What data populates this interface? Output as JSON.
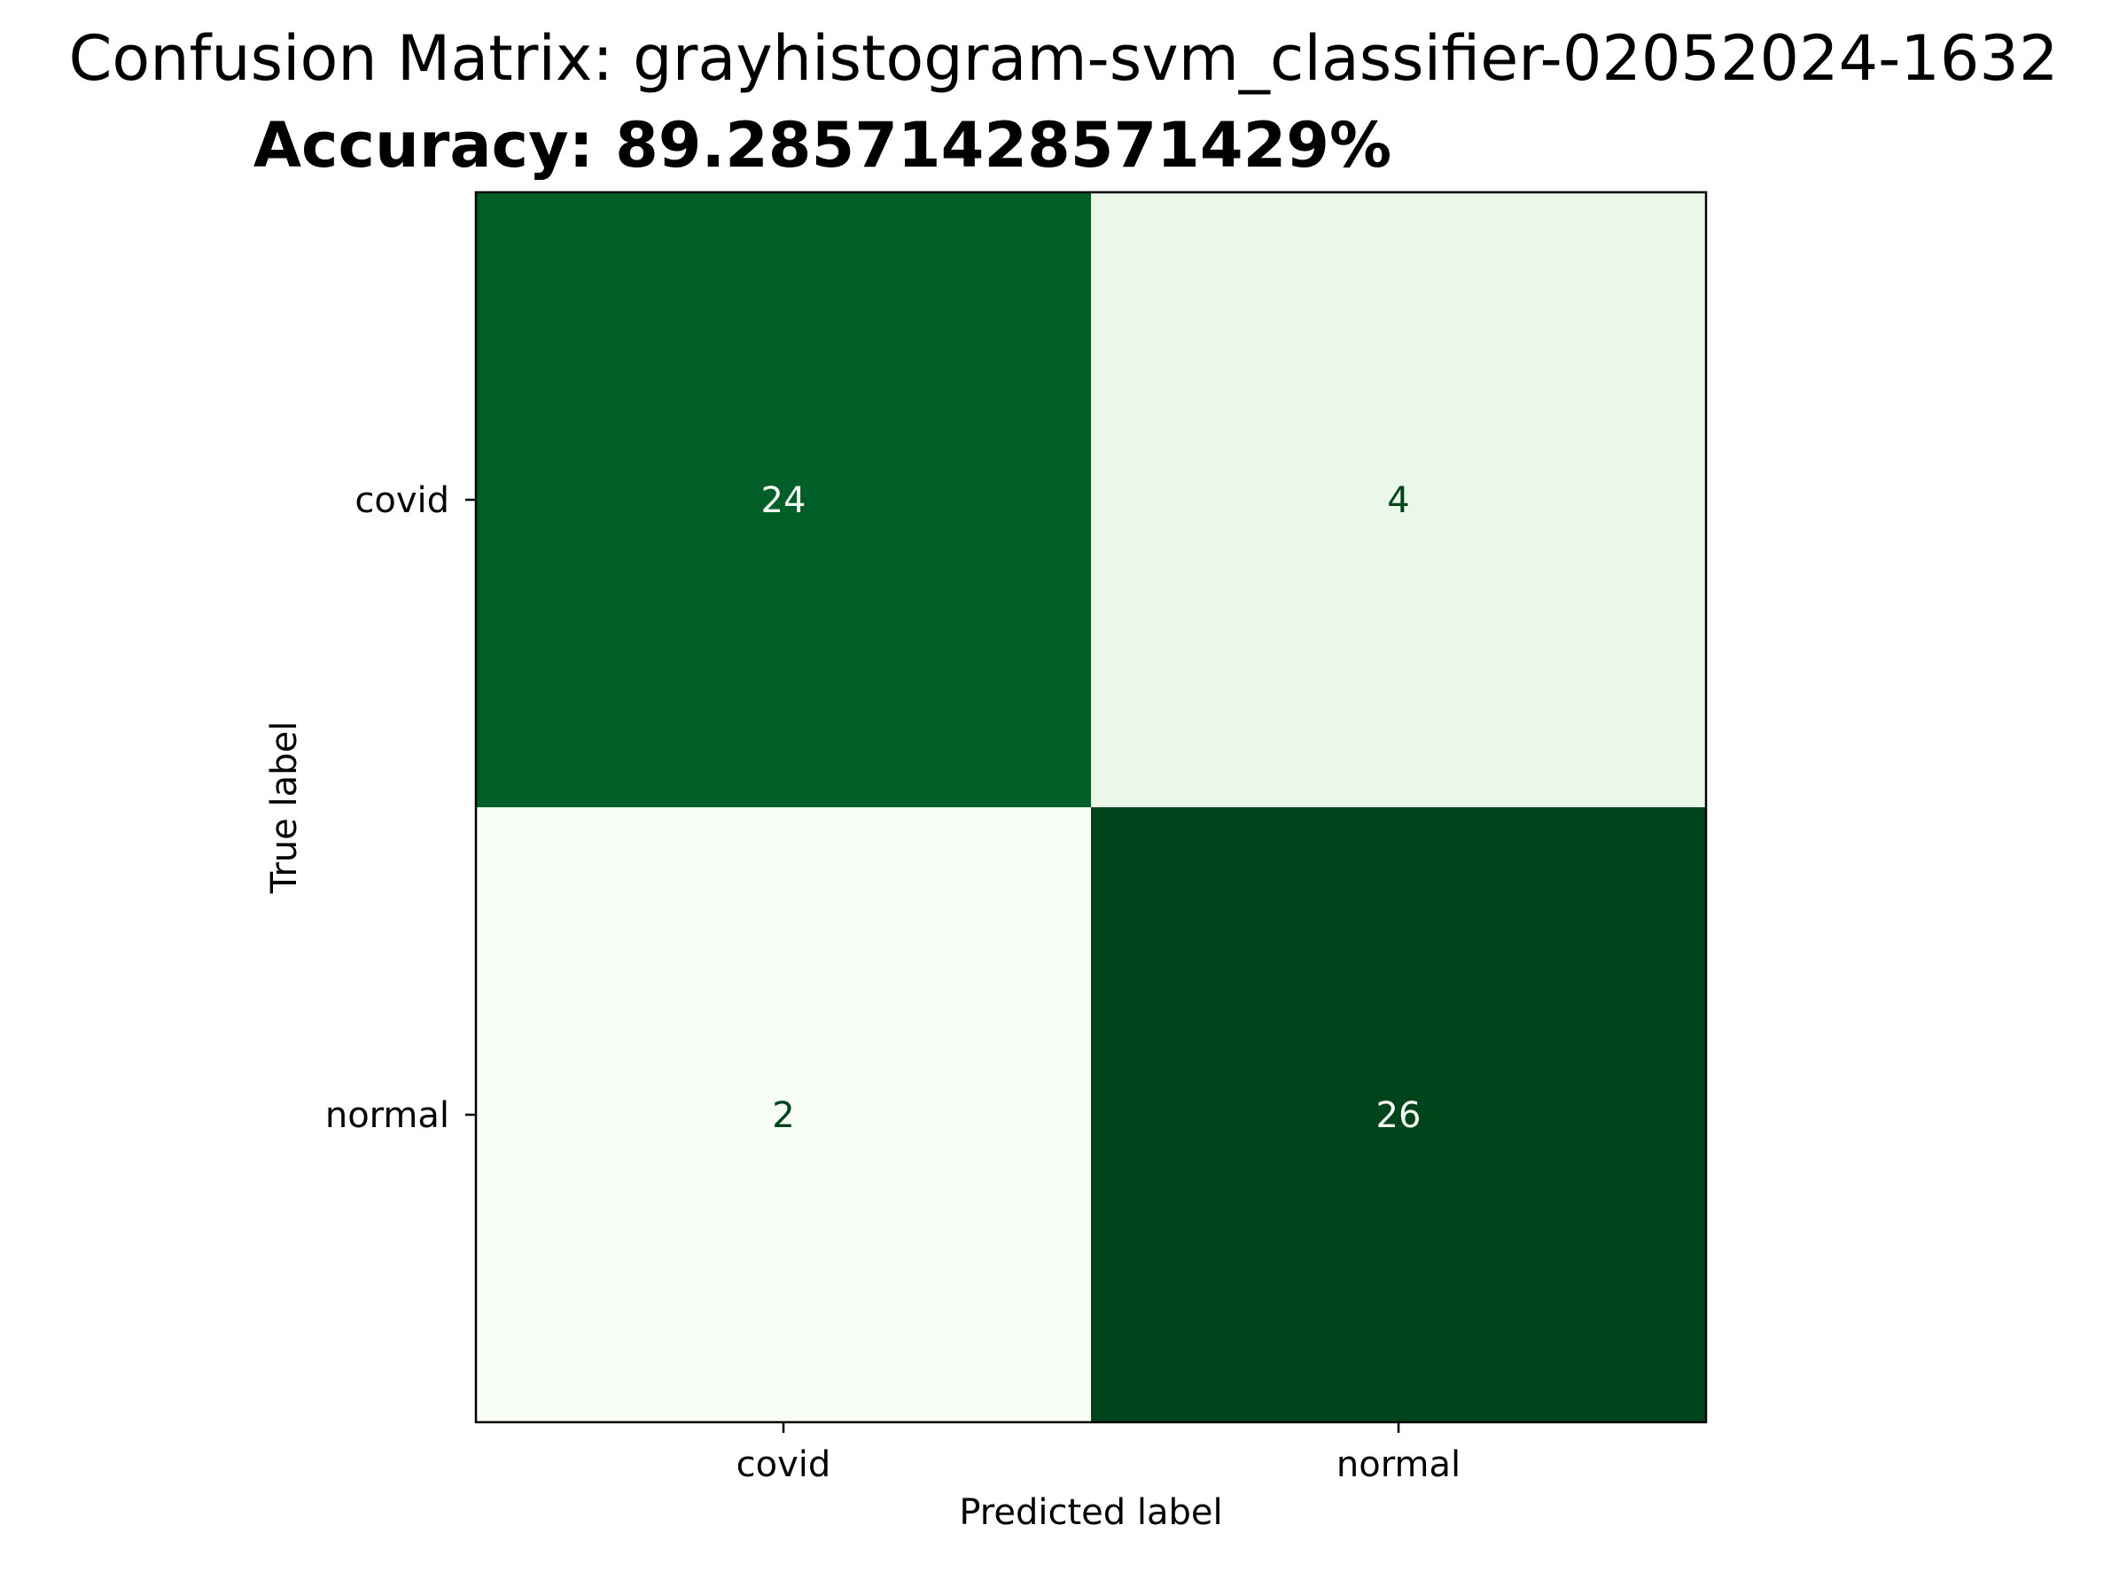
{
  "chart_data": {
    "type": "heatmap",
    "title": "Confusion Matrix: grayhistogram-svm_classifier-02052024-1632",
    "subtitle": "Accuracy: 89.28571428571429%",
    "xlabel": "Predicted label",
    "ylabel": "True label",
    "x_categories": [
      "covid",
      "normal"
    ],
    "y_categories": [
      "covid",
      "normal"
    ],
    "matrix": [
      [
        24,
        4
      ],
      [
        2,
        26
      ]
    ],
    "value_range": [
      2,
      26
    ],
    "colormap": "Greens",
    "colorbar": false,
    "grid": false
  },
  "colors": {
    "low": "#f7fcf5",
    "mid_low": "#e5f5e0",
    "mid": "#74c476",
    "mid_high": "#238b45",
    "high": "#00441b",
    "dark_text": "#00441b",
    "light_text": "#f7fcf5",
    "axis": "#000000"
  }
}
